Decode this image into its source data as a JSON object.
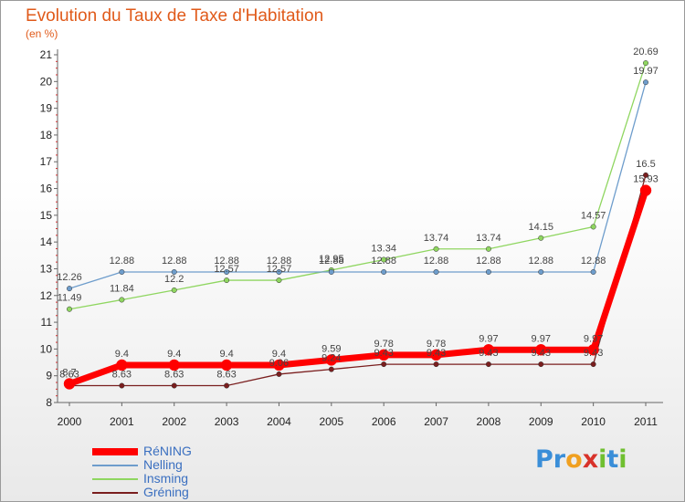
{
  "title": "Evolution du Taux de Taxe d'Habitation",
  "unit_label": "(en %)",
  "logo": {
    "letters": [
      "P",
      "r",
      "o",
      "x",
      "i",
      "t",
      "i"
    ],
    "colors": [
      "#3a8ed8",
      "#3a8ed8",
      "#f0a020",
      "#d8322a",
      "#6fbf30",
      "#3a8ed8",
      "#6fbf30"
    ]
  },
  "chart_data": {
    "type": "line",
    "x": [
      "2000",
      "2001",
      "2002",
      "2003",
      "2004",
      "2005",
      "2006",
      "2007",
      "2008",
      "2009",
      "2010",
      "2011"
    ],
    "ylim": [
      8,
      21
    ],
    "yticks": [
      8,
      9,
      10,
      11,
      12,
      13,
      14,
      15,
      16,
      17,
      18,
      19,
      20,
      21
    ],
    "grid": false,
    "legend_position": "bottom-left",
    "series": [
      {
        "name": "Gréning",
        "color": "#7a1e1e",
        "width": 1.3,
        "marker": 5.5,
        "values": [
          8.63,
          8.63,
          8.63,
          8.63,
          9.06,
          9.24,
          9.43,
          9.43,
          9.43,
          9.43,
          9.43,
          16.5
        ],
        "labels": [
          "8.63",
          "8.63",
          "8.63",
          "8.63",
          "9.06",
          "9.24",
          "9.43",
          "9.43",
          "9.43",
          "9.43",
          "9.43",
          "16.5"
        ]
      },
      {
        "name": "Insming",
        "color": "#8fd660",
        "width": 1.3,
        "marker": 5.5,
        "values": [
          11.49,
          11.84,
          12.2,
          12.57,
          12.57,
          12.95,
          13.34,
          13.74,
          13.74,
          14.15,
          14.57,
          20.69
        ],
        "labels": [
          "11.49",
          "11.84",
          "12.2",
          "12.57",
          "12.57",
          "12.95",
          "13.34",
          "13.74",
          "13.74",
          "14.15",
          "14.57",
          "20.69"
        ]
      },
      {
        "name": "Nelling",
        "color": "#6e9dcc",
        "width": 1.3,
        "marker": 5.5,
        "values": [
          12.26,
          12.88,
          12.88,
          12.88,
          12.88,
          12.88,
          12.88,
          12.88,
          12.88,
          12.88,
          12.88,
          19.97
        ],
        "labels": [
          "12.26",
          "12.88",
          "12.88",
          "12.88",
          "12.88",
          "12.88",
          "12.88",
          "12.88",
          "12.88",
          "12.88",
          "12.88",
          "19.97"
        ]
      },
      {
        "name": "RéNING",
        "color": "#ff0000",
        "width": 7,
        "marker": 12,
        "values": [
          8.7,
          9.4,
          9.4,
          9.4,
          9.4,
          9.59,
          9.78,
          9.78,
          9.97,
          9.97,
          9.97,
          15.93
        ],
        "labels": [
          "8.7",
          "9.4",
          "9.4",
          "9.4",
          "9.4",
          "9.59",
          "9.78",
          "9.78",
          "9.97",
          "9.97",
          "9.97",
          "15.93"
        ]
      }
    ],
    "legend_order": [
      "RéNING",
      "Nelling",
      "Insming",
      "Gréning"
    ]
  }
}
